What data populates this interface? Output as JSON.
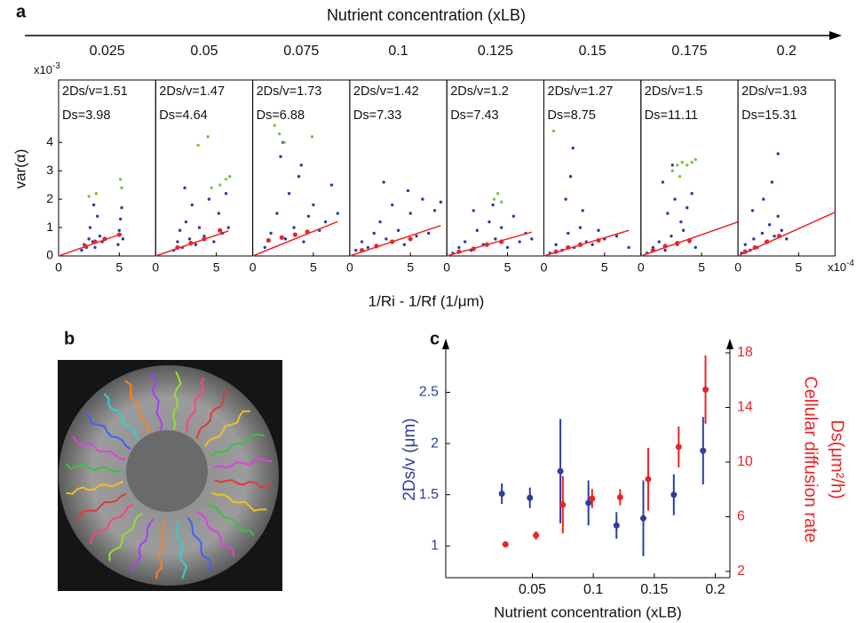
{
  "panel_labels": [
    "a",
    "b",
    "c"
  ],
  "panel_a": {
    "title": "Nutrient concentration (xLB)",
    "ylabel": "var(α)",
    "xlabel": "1/Ri - 1/Rf (1/μm)",
    "y_multiplier": {
      "base": "x10",
      "exponent": "-3"
    },
    "x_multiplier": {
      "base": "x10",
      "exponent": "-4"
    }
  },
  "chart_data": [
    {
      "type": "scatter",
      "title": "0.025",
      "annotations": [
        "2Ds/v=1.51",
        "Ds=3.98"
      ],
      "xlim": [
        0,
        8
      ],
      "xticks": [
        0,
        5
      ],
      "ylim": [
        0,
        6.2
      ],
      "yticks": [
        0,
        1,
        2,
        3,
        4
      ],
      "series": [
        {
          "mode": "markers",
          "color": "#2f3d9c",
          "x": [
            1.9,
            2.1,
            2.3,
            2.5,
            2.6,
            2.8,
            3.0,
            3.2,
            3.4,
            3.6,
            4.9,
            5.0,
            5.1,
            5.2,
            5.3,
            2.9
          ],
          "values": [
            0.2,
            0.4,
            0.3,
            0.6,
            1.0,
            0.5,
            0.3,
            1.4,
            0.7,
            0.5,
            0.4,
            0.9,
            1.3,
            1.7,
            0.6,
            1.8
          ]
        },
        {
          "mode": "markers",
          "color": "#7fc241",
          "x": [
            2.5,
            3.1,
            5.1,
            5.2
          ],
          "values": [
            2.1,
            2.2,
            2.7,
            2.4
          ]
        },
        {
          "mode": "line",
          "color": "#e8262a",
          "x": [
            0,
            5.2
          ],
          "values": [
            0,
            0.78
          ]
        },
        {
          "mode": "markers",
          "color": "#e8262a",
          "x": [
            2.2,
            3.0,
            3.8,
            5.0
          ],
          "values": [
            0.35,
            0.5,
            0.6,
            0.75
          ]
        }
      ]
    },
    {
      "type": "scatter",
      "title": "0.05",
      "annotations": [
        "2Ds/v=1.47",
        "Ds=4.64"
      ],
      "xlim": [
        0,
        8
      ],
      "xticks": [
        0,
        5
      ],
      "ylim": [
        0,
        6.2
      ],
      "series": [
        {
          "mode": "markers",
          "color": "#2f3d9c",
          "x": [
            1.5,
            1.8,
            2.0,
            2.2,
            2.5,
            2.8,
            3.0,
            3.3,
            3.6,
            4.0,
            4.4,
            4.8,
            5.2,
            5.5,
            5.8,
            6.0,
            2.4
          ],
          "values": [
            0.2,
            0.5,
            0.9,
            0.3,
            1.2,
            0.6,
            1.8,
            0.4,
            1.0,
            0.7,
            2.0,
            0.5,
            1.5,
            0.8,
            2.2,
            1.0,
            2.4
          ]
        },
        {
          "mode": "markers",
          "color": "#7fc241",
          "x": [
            3.5,
            4.3,
            4.6,
            5.3,
            5.8,
            6.1
          ],
          "values": [
            3.9,
            4.2,
            2.4,
            2.5,
            2.7,
            2.8
          ]
        },
        {
          "mode": "line",
          "color": "#e8262a",
          "x": [
            0,
            6.0
          ],
          "values": [
            0,
            0.88
          ]
        },
        {
          "mode": "markers",
          "color": "#e8262a",
          "x": [
            1.8,
            2.9,
            4.0,
            5.3
          ],
          "values": [
            0.3,
            0.45,
            0.6,
            0.9
          ]
        }
      ]
    },
    {
      "type": "scatter",
      "title": "0.075",
      "annotations": [
        "2Ds/v=1.73",
        "Ds=6.88"
      ],
      "xlim": [
        0,
        8
      ],
      "xticks": [
        0,
        5
      ],
      "ylim": [
        0,
        6.2
      ],
      "series": [
        {
          "mode": "markers",
          "color": "#2f3d9c",
          "x": [
            1.0,
            1.5,
            2.0,
            2.3,
            2.7,
            3.0,
            3.4,
            3.8,
            4.2,
            4.6,
            5.0,
            5.5,
            6.0,
            6.5,
            7.0,
            2.5,
            4.0
          ],
          "values": [
            0.3,
            0.8,
            1.5,
            3.5,
            0.6,
            2.2,
            1.0,
            2.8,
            0.5,
            1.4,
            1.8,
            0.9,
            1.2,
            2.5,
            1.5,
            4.0,
            3.2
          ]
        },
        {
          "mode": "markers",
          "color": "#7fc241",
          "x": [
            1.8,
            2.2,
            2.6,
            4.9
          ],
          "values": [
            4.6,
            4.3,
            4.0,
            4.2
          ]
        },
        {
          "mode": "line",
          "color": "#e8262a",
          "x": [
            0,
            7.0
          ],
          "values": [
            0,
            1.21
          ]
        },
        {
          "mode": "markers",
          "color": "#e8262a",
          "x": [
            1.3,
            2.4,
            3.5,
            4.5
          ],
          "values": [
            0.55,
            0.65,
            0.75,
            0.85
          ]
        }
      ]
    },
    {
      "type": "scatter",
      "title": "0.1",
      "annotations": [
        "2Ds/v=1.42",
        "Ds=7.33"
      ],
      "xlim": [
        0,
        8
      ],
      "xticks": [
        0,
        5
      ],
      "ylim": [
        0,
        6.2
      ],
      "series": [
        {
          "mode": "markers",
          "color": "#2f3d9c",
          "x": [
            0.5,
            1.0,
            1.5,
            2.0,
            2.5,
            3.0,
            3.5,
            4.0,
            4.5,
            5.0,
            5.5,
            6.0,
            6.5,
            7.0,
            7.5,
            2.8,
            4.8
          ],
          "values": [
            0.2,
            0.5,
            0.3,
            0.8,
            1.2,
            0.6,
            1.8,
            0.9,
            0.4,
            1.5,
            0.7,
            2.0,
            0.8,
            1.6,
            1.9,
            2.6,
            2.3
          ]
        },
        {
          "mode": "line",
          "color": "#e8262a",
          "x": [
            0,
            7.5
          ],
          "values": [
            0,
            1.07
          ]
        },
        {
          "mode": "markers",
          "color": "#e8262a",
          "x": [
            1.0,
            2.2,
            3.5,
            5.0
          ],
          "values": [
            0.2,
            0.35,
            0.5,
            0.6
          ]
        }
      ]
    },
    {
      "type": "scatter",
      "title": "0.125",
      "annotations": [
        "2Ds/v=1.2",
        "Ds=7.43"
      ],
      "xlim": [
        0,
        8
      ],
      "xticks": [
        0,
        5
      ],
      "ylim": [
        0,
        6.2
      ],
      "series": [
        {
          "mode": "markers",
          "color": "#2f3d9c",
          "x": [
            0.5,
            1.0,
            1.5,
            2.0,
            2.5,
            3.0,
            3.5,
            4.0,
            4.5,
            5.0,
            5.5,
            6.0,
            6.5,
            7.0,
            2.2,
            3.8
          ],
          "values": [
            0.1,
            0.3,
            0.5,
            0.2,
            0.9,
            0.4,
            1.2,
            0.6,
            1.0,
            0.3,
            1.4,
            0.5,
            0.8,
            0.6,
            1.6,
            1.8
          ]
        },
        {
          "mode": "markers",
          "color": "#7fc241",
          "x": [
            3.9,
            4.2,
            4.5
          ],
          "values": [
            2.0,
            2.2,
            1.9
          ]
        },
        {
          "mode": "line",
          "color": "#e8262a",
          "x": [
            0,
            7.0
          ],
          "values": [
            0,
            0.84
          ]
        },
        {
          "mode": "markers",
          "color": "#e8262a",
          "x": [
            1.0,
            2.2,
            3.3,
            4.5
          ],
          "values": [
            0.15,
            0.25,
            0.4,
            0.5
          ]
        }
      ]
    },
    {
      "type": "scatter",
      "title": "0.15",
      "annotations": [
        "2Ds/v=1.27",
        "Ds=8.75"
      ],
      "xlim": [
        0,
        8
      ],
      "xticks": [
        0,
        5
      ],
      "ylim": [
        0,
        6.2
      ],
      "series": [
        {
          "mode": "markers",
          "color": "#2f3d9c",
          "x": [
            0.5,
            1.0,
            1.5,
            2.0,
            2.5,
            3.0,
            3.5,
            4.0,
            4.5,
            5.0,
            6.0,
            7.0,
            1.8,
            2.2,
            2.4,
            3.2
          ],
          "values": [
            0.1,
            0.4,
            0.2,
            0.8,
            0.3,
            1.0,
            0.5,
            0.4,
            0.9,
            0.6,
            0.7,
            0.3,
            2.0,
            2.8,
            3.8,
            1.6
          ]
        },
        {
          "mode": "markers",
          "color": "#7fc241",
          "x": [
            0.8
          ],
          "values": [
            4.4
          ]
        },
        {
          "mode": "line",
          "color": "#e8262a",
          "x": [
            0,
            7.0
          ],
          "values": [
            0,
            0.9
          ]
        },
        {
          "mode": "markers",
          "color": "#e8262a",
          "x": [
            1.0,
            2.0,
            3.0,
            4.5
          ],
          "values": [
            0.15,
            0.3,
            0.4,
            0.55
          ]
        }
      ]
    },
    {
      "type": "scatter",
      "title": "0.175",
      "annotations": [
        "2Ds/v=1.5",
        "Ds=11.11"
      ],
      "xlim": [
        0,
        8
      ],
      "xticks": [
        0,
        5
      ],
      "ylim": [
        0,
        6.2
      ],
      "series": [
        {
          "mode": "markers",
          "color": "#2f3d9c",
          "x": [
            0.5,
            1.0,
            1.5,
            2.0,
            2.5,
            3.0,
            3.5,
            4.0,
            4.5,
            2.2,
            2.8,
            3.3,
            3.8,
            1.8,
            4.2,
            2.6
          ],
          "values": [
            0.1,
            0.3,
            0.5,
            0.2,
            0.7,
            0.4,
            0.9,
            0.5,
            0.3,
            1.5,
            2.0,
            1.2,
            1.7,
            2.6,
            2.2,
            3.2
          ]
        },
        {
          "mode": "markers",
          "color": "#7fc241",
          "x": [
            2.6,
            3.0,
            3.4,
            3.8,
            4.2,
            4.5,
            3.2
          ],
          "values": [
            3.0,
            3.2,
            3.3,
            3.2,
            3.3,
            3.4,
            2.8
          ]
        },
        {
          "mode": "line",
          "color": "#e8262a",
          "x": [
            0,
            8.0
          ],
          "values": [
            0,
            1.2
          ]
        },
        {
          "mode": "markers",
          "color": "#e8262a",
          "x": [
            1.0,
            2.0,
            3.0,
            4.0
          ],
          "values": [
            0.2,
            0.35,
            0.45,
            0.55
          ]
        }
      ]
    },
    {
      "type": "scatter",
      "title": "0.2",
      "annotations": [
        "2Ds/v=1.93",
        "Ds=15.31"
      ],
      "xlim": [
        0,
        8
      ],
      "xticks": [
        0,
        5
      ],
      "ylim": [
        0,
        6.2
      ],
      "series": [
        {
          "mode": "markers",
          "color": "#2f3d9c",
          "x": [
            0.3,
            0.6,
            1.0,
            1.3,
            1.6,
            2.0,
            2.3,
            2.6,
            3.0,
            3.3,
            3.6,
            4.0,
            1.2,
            2.1,
            2.8,
            3.3
          ],
          "values": [
            0.1,
            0.4,
            0.2,
            0.6,
            0.3,
            0.8,
            0.5,
            1.1,
            0.7,
            1.4,
            0.9,
            0.6,
            1.6,
            2.0,
            2.6,
            3.6
          ]
        },
        {
          "mode": "line",
          "color": "#e8262a",
          "x": [
            0,
            8.0
          ],
          "values": [
            0,
            1.54
          ]
        },
        {
          "mode": "markers",
          "color": "#e8262a",
          "x": [
            0.6,
            1.4,
            2.4,
            3.4
          ],
          "values": [
            0.15,
            0.3,
            0.5,
            0.7
          ]
        }
      ]
    },
    {
      "type": "errorbar",
      "xlabel": "Nutrient concentration (xLB)",
      "ylabel": "2Ds/v (μm)",
      "y2label": [
        "Cellular diffusion rate",
        "Ds(μm²/h)"
      ],
      "xlim": [
        -0.021,
        0.212
      ],
      "xticks": [
        0.05,
        0.1,
        0.15,
        0.2
      ],
      "ylim": [
        0.69,
        2.99
      ],
      "yticks": [
        1,
        1.5,
        2,
        2.5
      ],
      "y2lim": [
        1.54,
        18.78
      ],
      "y2ticks": [
        2,
        6,
        10,
        14,
        18
      ],
      "series": [
        {
          "color": "#2f3d9c",
          "x": [
            0.025,
            0.048,
            0.073,
            0.096,
            0.119,
            0.141,
            0.166,
            0.19
          ],
          "values": [
            1.51,
            1.47,
            1.73,
            1.42,
            1.2,
            1.27,
            1.5,
            1.93
          ],
          "errors": [
            0.1,
            0.1,
            0.51,
            0.22,
            0.13,
            0.37,
            0.2,
            0.33
          ]
        },
        {
          "axis": "y2",
          "color": "#e8262a",
          "x": [
            0.028,
            0.053,
            0.075,
            0.099,
            0.122,
            0.145,
            0.17,
            0.192
          ],
          "values": [
            3.98,
            4.64,
            6.88,
            7.33,
            7.43,
            8.75,
            11.11,
            15.31
          ],
          "errors": [
            0.2,
            0.3,
            2.1,
            0.7,
            0.6,
            2.3,
            1.5,
            2.5
          ]
        }
      ]
    }
  ]
}
